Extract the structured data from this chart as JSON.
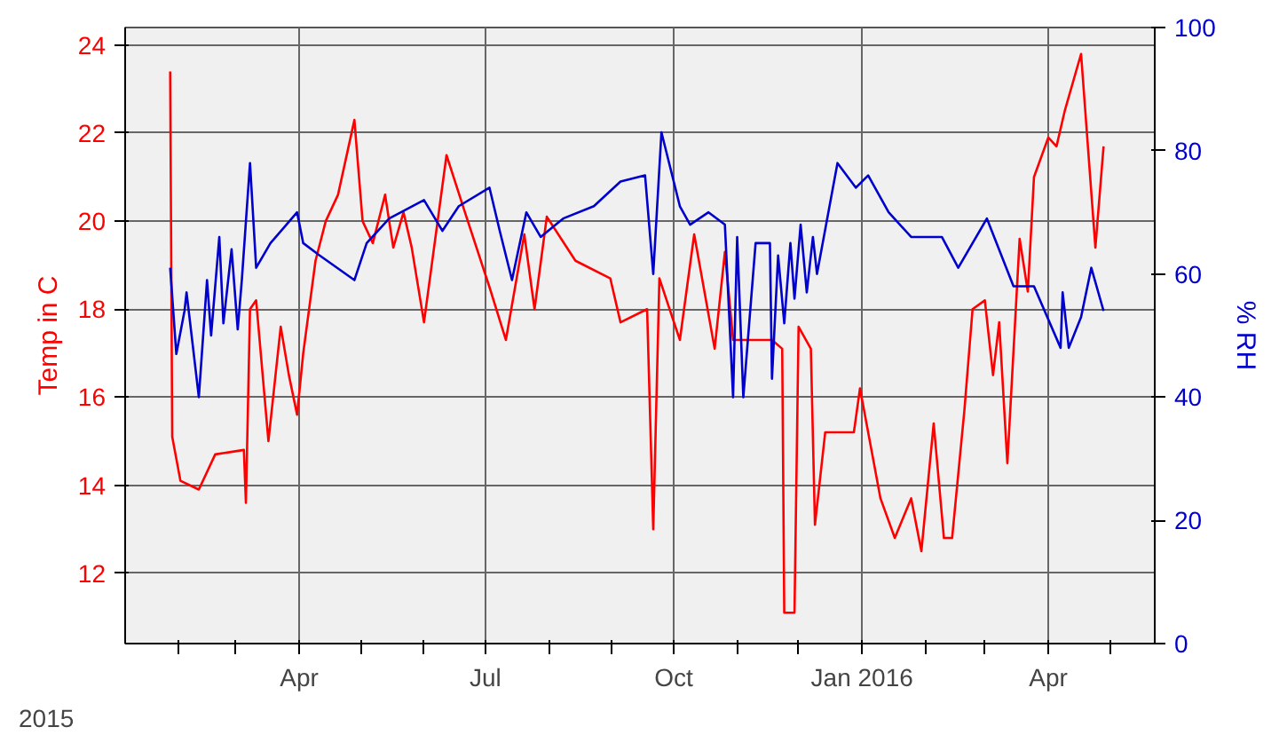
{
  "chart_data": {
    "type": "line",
    "ylabel": "Temp in C",
    "y2label": "% RH",
    "annotations": [
      "2015"
    ],
    "xlim": [
      "2015-01-06",
      "2016-05-23"
    ],
    "xticks": [
      {
        "value": "2015-02-01",
        "label": null
      },
      {
        "value": "2015-03-01",
        "label": null
      },
      {
        "value": "2015-04-01",
        "label": "Apr"
      },
      {
        "value": "2015-05-01",
        "label": null
      },
      {
        "value": "2015-06-01",
        "label": null
      },
      {
        "value": "2015-07-01",
        "label": "Jul"
      },
      {
        "value": "2015-08-01",
        "label": null
      },
      {
        "value": "2015-09-01",
        "label": null
      },
      {
        "value": "2015-10-01",
        "label": "Oct"
      },
      {
        "value": "2015-11-01",
        "label": null
      },
      {
        "value": "2015-12-01",
        "label": null
      },
      {
        "value": "2016-01-01",
        "label": "Jan 2016"
      },
      {
        "value": "2016-02-01",
        "label": null
      },
      {
        "value": "2016-03-01",
        "label": null
      },
      {
        "value": "2016-04-01",
        "label": "Apr"
      },
      {
        "value": "2016-05-01",
        "label": null
      }
    ],
    "ylim": [
      10.4,
      24.4
    ],
    "yticks": [
      12,
      14,
      16,
      18,
      20,
      22,
      24
    ],
    "y2lim": [
      0,
      100
    ],
    "y2ticks": [
      0,
      20,
      40,
      60,
      80,
      100
    ],
    "grid": true,
    "series": [
      {
        "color": "#ff0000",
        "x": [
          "2015-01-28",
          "2015-01-29",
          "2015-02-02",
          "2015-02-11",
          "2015-02-19",
          "2015-03-05",
          "2015-03-06",
          "2015-03-08",
          "2015-03-11",
          "2015-03-17",
          "2015-03-23",
          "2015-03-27",
          "2015-03-31",
          "2015-04-03",
          "2015-04-09",
          "2015-04-14",
          "2015-04-20",
          "2015-04-28",
          "2015-05-02",
          "2015-05-07",
          "2015-05-13",
          "2015-05-17",
          "2015-05-22",
          "2015-05-26",
          "2015-06-01",
          "2015-06-12",
          "2015-06-21",
          "2015-07-03",
          "2015-07-11",
          "2015-07-20",
          "2015-07-25",
          "2015-07-31",
          "2015-08-14",
          "2015-08-31",
          "2015-09-05",
          "2015-09-18",
          "2015-09-21",
          "2015-09-24",
          "2015-10-04",
          "2015-10-11",
          "2015-10-21",
          "2015-10-26",
          "2015-10-30",
          "2015-11-18",
          "2015-11-23",
          "2015-11-24",
          "2015-11-29",
          "2015-12-01",
          "2015-12-07",
          "2015-12-09",
          "2015-12-14",
          "2015-12-28",
          "2015-12-31",
          "2016-01-10",
          "2016-01-17",
          "2016-01-25",
          "2016-01-30",
          "2016-02-05",
          "2016-02-10",
          "2016-02-14",
          "2016-02-20",
          "2016-02-24",
          "2016-03-01",
          "2016-03-05",
          "2016-03-08",
          "2016-03-12",
          "2016-03-18",
          "2016-03-22",
          "2016-03-25",
          "2016-04-01",
          "2016-04-05",
          "2016-04-09",
          "2016-04-17",
          "2016-04-24",
          "2016-04-28"
        ],
        "values": [
          23.4,
          15.1,
          14.1,
          13.9,
          14.7,
          14.8,
          13.6,
          18.0,
          18.2,
          15.0,
          17.6,
          16.5,
          15.6,
          17.0,
          19.1,
          20.0,
          20.6,
          22.3,
          20.0,
          19.5,
          20.6,
          19.4,
          20.2,
          19.4,
          17.7,
          21.5,
          20.2,
          18.5,
          17.3,
          19.7,
          18.0,
          20.1,
          19.1,
          18.7,
          17.7,
          18.0,
          13.0,
          18.7,
          17.3,
          19.7,
          17.1,
          19.3,
          17.3,
          17.3,
          17.1,
          11.1,
          11.1,
          17.6,
          17.1,
          13.1,
          15.2,
          15.2,
          16.2,
          13.7,
          12.8,
          13.7,
          12.5,
          15.4,
          12.8,
          12.8,
          15.7,
          18.0,
          18.2,
          16.5,
          17.7,
          14.5,
          19.6,
          18.4,
          21.0,
          21.9,
          21.7,
          22.5,
          23.8,
          19.4,
          21.7
        ]
      },
      {
        "color": "#0000cc",
        "axis": "y2",
        "x": [
          "2015-01-28",
          "2015-01-31",
          "2015-02-04",
          "2015-02-05",
          "2015-02-11",
          "2015-02-15",
          "2015-02-17",
          "2015-02-21",
          "2015-02-23",
          "2015-02-27",
          "2015-03-02",
          "2015-03-04",
          "2015-03-08",
          "2015-03-11",
          "2015-03-18",
          "2015-03-31",
          "2015-04-03",
          "2015-04-11",
          "2015-04-28",
          "2015-05-04",
          "2015-05-15",
          "2015-06-01",
          "2015-06-10",
          "2015-06-18",
          "2015-07-03",
          "2015-07-08",
          "2015-07-14",
          "2015-07-21",
          "2015-07-28",
          "2015-08-08",
          "2015-08-23",
          "2015-09-05",
          "2015-09-17",
          "2015-09-21",
          "2015-09-25",
          "2015-10-04",
          "2015-10-09",
          "2015-10-18",
          "2015-10-26",
          "2015-10-30",
          "2015-11-01",
          "2015-11-04",
          "2015-11-10",
          "2015-11-17",
          "2015-11-18",
          "2015-11-21",
          "2015-11-24",
          "2015-11-27",
          "2015-11-29",
          "2015-12-02",
          "2015-12-05",
          "2015-12-08",
          "2015-12-10",
          "2015-12-20",
          "2015-12-29",
          "2016-01-04",
          "2016-01-14",
          "2016-01-25",
          "2016-02-09",
          "2016-02-17",
          "2016-03-02",
          "2016-03-15",
          "2016-03-25",
          "2016-04-07",
          "2016-04-08",
          "2016-04-11",
          "2016-04-17",
          "2016-04-22",
          "2016-04-28"
        ],
        "values": [
          61,
          47,
          54,
          57,
          40,
          59,
          50,
          66,
          52,
          64,
          51,
          59,
          78,
          61,
          65,
          70,
          65,
          63,
          59,
          65,
          69,
          72,
          67,
          71,
          74,
          67,
          59,
          70,
          66,
          69,
          71,
          75,
          76,
          60,
          83,
          71,
          68,
          70,
          68,
          40,
          66,
          40,
          65,
          65,
          43,
          63,
          52,
          65,
          56,
          68,
          57,
          66,
          60,
          78,
          74,
          76,
          70,
          66,
          66,
          61,
          69,
          58,
          58,
          48,
          57,
          48,
          53,
          61,
          54
        ]
      }
    ]
  }
}
